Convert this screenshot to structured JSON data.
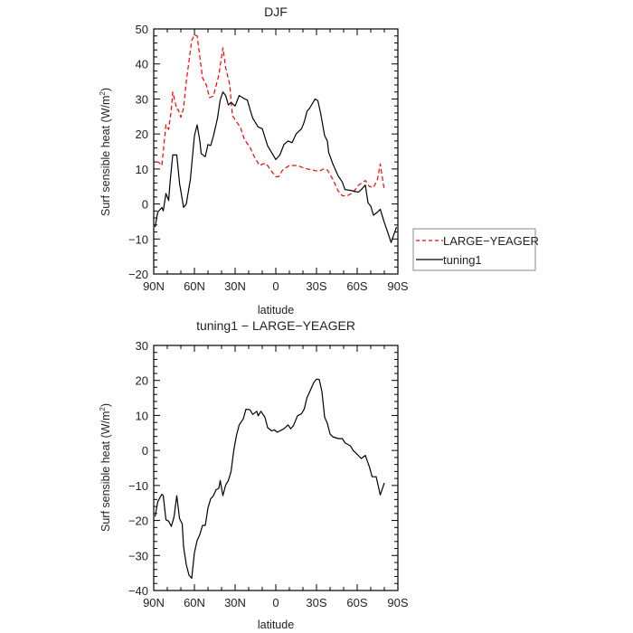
{
  "chart_data": [
    {
      "type": "line",
      "title": "DJF",
      "xlabel": "latitude",
      "ylabel": "Surf sensible heat (W/m²)",
      "ylabel_parts": {
        "main": "Surf sensible heat (W/m",
        "sup": "2",
        "end": ")"
      },
      "xlim": [
        90,
        -90
      ],
      "ylim": [
        -20,
        50
      ],
      "x_ticks": [
        90,
        60,
        30,
        0,
        -30,
        -60,
        -90
      ],
      "x_tick_labels": [
        "90N",
        "60N",
        "30N",
        "0",
        "30S",
        "60S",
        "90S"
      ],
      "y_ticks": [
        -20,
        -10,
        0,
        10,
        20,
        30,
        40,
        50
      ],
      "y_tick_labels": [
        "−20",
        "−10",
        "0",
        "10",
        "20",
        "30",
        "40",
        "50"
      ],
      "legend": {
        "placement": "outside-right",
        "entries": [
          "LARGE−YEAGER",
          "tuning1"
        ]
      },
      "series": [
        {
          "name": "LARGE−YEAGER",
          "color": "#ff0000",
          "dash": "dashed",
          "x": [
            88,
            86,
            84,
            81,
            79,
            77,
            76,
            73,
            72,
            70,
            68,
            66,
            62,
            60,
            58,
            54,
            51,
            49,
            46,
            42,
            39,
            37,
            34,
            32,
            29,
            26,
            23,
            19,
            16,
            12,
            9,
            7,
            3,
            0,
            -2,
            -5,
            -10,
            -16,
            -21,
            -27,
            -32,
            -35,
            -38,
            -42,
            -46,
            -49,
            -52,
            -57,
            -61,
            -66,
            -69,
            -72,
            -75,
            -77,
            -80
          ],
          "y": [
            12.1,
            11.8,
            11,
            22.6,
            21.3,
            27,
            32,
            27,
            27,
            24.8,
            27.4,
            35,
            46.7,
            48.3,
            48,
            36,
            33.8,
            30.4,
            30.8,
            36.8,
            44.6,
            39,
            34.2,
            25.2,
            23.5,
            21.8,
            18.3,
            16.2,
            13.6,
            11,
            11.5,
            11.5,
            9.3,
            7.8,
            7.8,
            9.7,
            11,
            11,
            10.2,
            9.7,
            9.3,
            10,
            9.7,
            7.1,
            3.7,
            2.4,
            2.2,
            3.3,
            5.4,
            6.7,
            5,
            4.7,
            7.1,
            11.4,
            3.9
          ]
        },
        {
          "name": "tuning1",
          "color": "#000000",
          "dash": "solid",
          "x": [
            89,
            87,
            84,
            83,
            81,
            79,
            78,
            76,
            73,
            71,
            68,
            66,
            63,
            60,
            58,
            56,
            55,
            52,
            50,
            48,
            46,
            43,
            41,
            39,
            37,
            35,
            33,
            30,
            29,
            27,
            23,
            21,
            19,
            17,
            13,
            10,
            8,
            6,
            2,
            0,
            -3,
            -6,
            -9,
            -12,
            -15,
            -19,
            -21,
            -23,
            -25,
            -29,
            -31,
            -33,
            -36,
            -38,
            -39,
            -42,
            -46,
            -49,
            -51,
            -55,
            -59,
            -61,
            -63,
            -66,
            -68,
            -70,
            -72,
            -75,
            -77,
            -80,
            -82,
            -85,
            -87,
            -89
          ],
          "y": [
            -6.6,
            -2.3,
            -1,
            -2,
            3,
            1,
            6,
            14,
            14,
            6,
            -1,
            0,
            7,
            19.5,
            22.6,
            18,
            14.4,
            13.5,
            17,
            16.7,
            19.4,
            24.5,
            29.7,
            32,
            31,
            28.3,
            29,
            28,
            29,
            31,
            30,
            29.7,
            27,
            24.5,
            22,
            21.5,
            19,
            16.6,
            14,
            12.7,
            14,
            17,
            18,
            17.5,
            20,
            21.5,
            23.5,
            26.5,
            27.4,
            30,
            29.5,
            26,
            19.5,
            18,
            14.7,
            11.5,
            8,
            6.3,
            4.1,
            3.9,
            3.5,
            3.4,
            4.1,
            5.4,
            0.3,
            -0.6,
            -3.2,
            -2.3,
            -1.5,
            -5.3,
            -7.5,
            -11,
            -8.8,
            -6.6
          ]
        }
      ]
    },
    {
      "type": "line",
      "title": "tuning1 − LARGE−YEAGER",
      "xlabel": "latitude",
      "ylabel": "Surf sensible heat (W/m²)",
      "ylabel_parts": {
        "main": "Surf sensible heat (W/m",
        "sup": "2",
        "end": ")"
      },
      "xlim": [
        90,
        -90
      ],
      "ylim": [
        -40,
        30
      ],
      "x_ticks": [
        90,
        60,
        30,
        0,
        -30,
        -60,
        -90
      ],
      "x_tick_labels": [
        "90N",
        "60N",
        "30N",
        "0",
        "30S",
        "60S",
        "90S"
      ],
      "y_ticks": [
        -40,
        -30,
        -20,
        -10,
        0,
        10,
        20,
        30
      ],
      "y_tick_labels": [
        "−40",
        "−30",
        "−20",
        "−10",
        "0",
        "10",
        "20",
        "30"
      ],
      "series": [
        {
          "name": "tuning1 − LARGE−YEAGER",
          "color": "#000000",
          "dash": "solid",
          "x": [
            89,
            87,
            84,
            83,
            81,
            79,
            77,
            75,
            73,
            71,
            69,
            68,
            66,
            64,
            62,
            60,
            58,
            56,
            54,
            52,
            50,
            48,
            46,
            44,
            42,
            41,
            39,
            37,
            35,
            33,
            31,
            29,
            27,
            24,
            22,
            19,
            17,
            14,
            13,
            11,
            8,
            6,
            3,
            1,
            -1,
            -4,
            -6,
            -9,
            -11,
            -13,
            -16,
            -19,
            -21,
            -23,
            -25,
            -28,
            -30,
            -32,
            -34,
            -36,
            -38,
            -40,
            -42,
            -46,
            -49,
            -51,
            -55,
            -57,
            -59,
            -63,
            -66,
            -69,
            -71,
            -74,
            -77,
            -80
          ],
          "y": [
            -18.9,
            -14.6,
            -12.5,
            -12.9,
            -19.8,
            -20.2,
            -21.7,
            -18.9,
            -12.9,
            -19.4,
            -21,
            -27.5,
            -32.6,
            -35.6,
            -36.5,
            -29.2,
            -25.7,
            -24,
            -21.4,
            -21.4,
            -16.4,
            -13.8,
            -12.9,
            -11.2,
            -10.8,
            -8.6,
            -12.9,
            -9.9,
            -8.6,
            -6,
            0,
            4.3,
            7.3,
            9,
            11.8,
            11.6,
            10.3,
            11.2,
            9.9,
            11.2,
            9.5,
            6.5,
            5.6,
            5.9,
            5.2,
            5.8,
            6.2,
            7.3,
            6.2,
            7.1,
            9.9,
            10.5,
            11.9,
            15.1,
            16.8,
            19.4,
            20.4,
            20.3,
            16.8,
            9.5,
            7.7,
            4.7,
            3.9,
            3.4,
            3.4,
            2.2,
            1.3,
            0,
            -0.7,
            -2.3,
            -1.4,
            -4.7,
            -7.5,
            -7.5,
            -12.7,
            -9.3
          ]
        }
      ]
    }
  ]
}
